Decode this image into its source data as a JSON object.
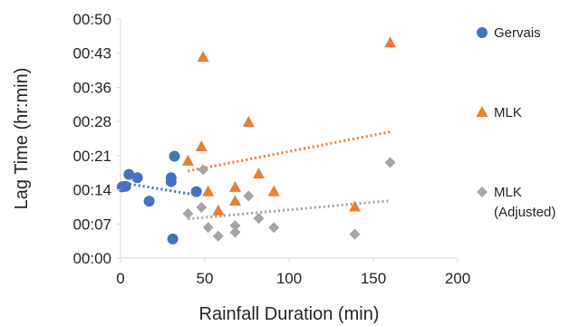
{
  "chart_data": {
    "type": "scatter",
    "xlabel": "Rainfall Duration (min)",
    "ylabel": "Lag Time (hr:min)",
    "xlim": [
      0,
      200
    ],
    "ylim": [
      0,
      50
    ],
    "x_ticks": [
      0,
      50,
      100,
      150,
      200
    ],
    "x_tick_labels": [
      "0",
      "50",
      "100",
      "150",
      "200"
    ],
    "y_ticks": [
      0,
      7.14,
      14.29,
      21.43,
      28.57,
      35.71,
      42.86,
      50
    ],
    "y_tick_labels": [
      "00:00",
      "00:07",
      "00:14",
      "00:21",
      "00:28",
      "00:36",
      "00:43",
      "00:50"
    ],
    "y_unit": "minutes",
    "grid": false,
    "legend": "right",
    "series": [
      {
        "name": "Gervais",
        "marker": "circle",
        "color": "#4472C4",
        "points": [
          [
            1,
            14.9
          ],
          [
            3,
            15
          ],
          [
            5,
            17.5
          ],
          [
            10,
            16.8
          ],
          [
            17,
            11.9
          ],
          [
            30,
            16.8
          ],
          [
            30,
            16
          ],
          [
            32,
            21.3
          ],
          [
            45,
            13.9
          ],
          [
            31,
            4
          ]
        ],
        "trendline": {
          "style": "dotted",
          "from": [
            0,
            15.8
          ],
          "to": [
            45,
            13.2
          ]
        }
      },
      {
        "name": "MLK",
        "marker": "triangle",
        "color": "#ED7D31",
        "points": [
          [
            49,
            42
          ],
          [
            160,
            45
          ],
          [
            76,
            28.4
          ],
          [
            48,
            23.3
          ],
          [
            40,
            20.3
          ],
          [
            82,
            17.6
          ],
          [
            52,
            13.9
          ],
          [
            68,
            14.8
          ],
          [
            68,
            11.9
          ],
          [
            58,
            9.9
          ],
          [
            91,
            13.9
          ],
          [
            139,
            10.7
          ]
        ],
        "trendline": {
          "style": "dotted",
          "from": [
            40,
            18.2
          ],
          "to": [
            160,
            26.4
          ]
        }
      },
      {
        "name": "MLK\n(Adjusted)",
        "marker": "diamond",
        "color": "#A5A5A5",
        "points": [
          [
            49,
            18.5
          ],
          [
            160,
            20
          ],
          [
            76,
            13
          ],
          [
            48,
            10.6
          ],
          [
            40,
            9.3
          ],
          [
            82,
            8.3
          ],
          [
            52,
            6.4
          ],
          [
            68,
            6.8
          ],
          [
            68,
            5.4
          ],
          [
            58,
            4.6
          ],
          [
            91,
            6.4
          ],
          [
            139,
            5
          ]
        ],
        "trendline": {
          "style": "dotted",
          "from": [
            40,
            8.2
          ],
          "to": [
            160,
            12
          ]
        }
      }
    ]
  }
}
